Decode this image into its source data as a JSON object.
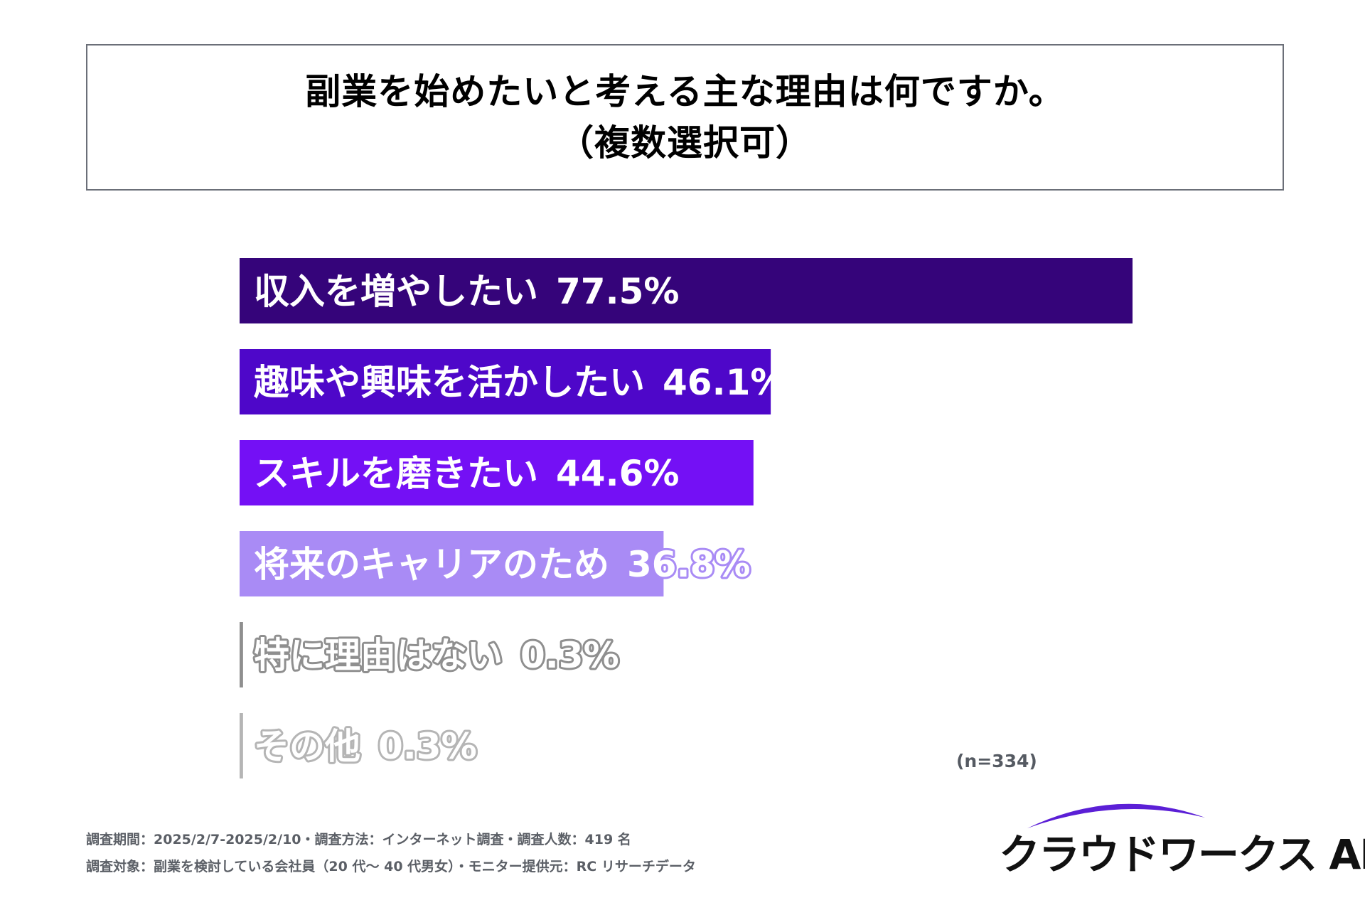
{
  "title": {
    "line1": "副業を始めたいと考える主な理由は何ですか。",
    "line2": "（複数選択可）"
  },
  "chart_data": {
    "type": "bar",
    "orientation": "horizontal",
    "categories": [
      "収入を増やしたい",
      "趣味や興味を活かしたい",
      "スキルを磨きたい",
      "将来のキャリアのため",
      "特に理由はない",
      "その他"
    ],
    "values": [
      77.5,
      46.1,
      44.6,
      36.8,
      0.3,
      0.3
    ],
    "value_labels": [
      "77.5%",
      "46.1%",
      "44.6%",
      "36.8%",
      "0.3%",
      "0.3%"
    ],
    "colors": [
      "#35047a",
      "#4e07c9",
      "#7410f5",
      "#a98bf5",
      "#8f8f8f",
      "#b5b5b5"
    ],
    "xlim": [
      0,
      77.5
    ]
  },
  "sample_note": "(n=334)",
  "footnotes": [
    "調査期間：2025/2/7-2025/2/10・調査方法：インターネット調査・調査人数：419 名",
    "調査対象：副業を検討している会社員（20 代～ 40 代男女）・モニター提供元：RC リサーチデータ"
  ],
  "logo": {
    "text": "クラウドワークス AI",
    "arc_color": "#5b1fd6"
  }
}
